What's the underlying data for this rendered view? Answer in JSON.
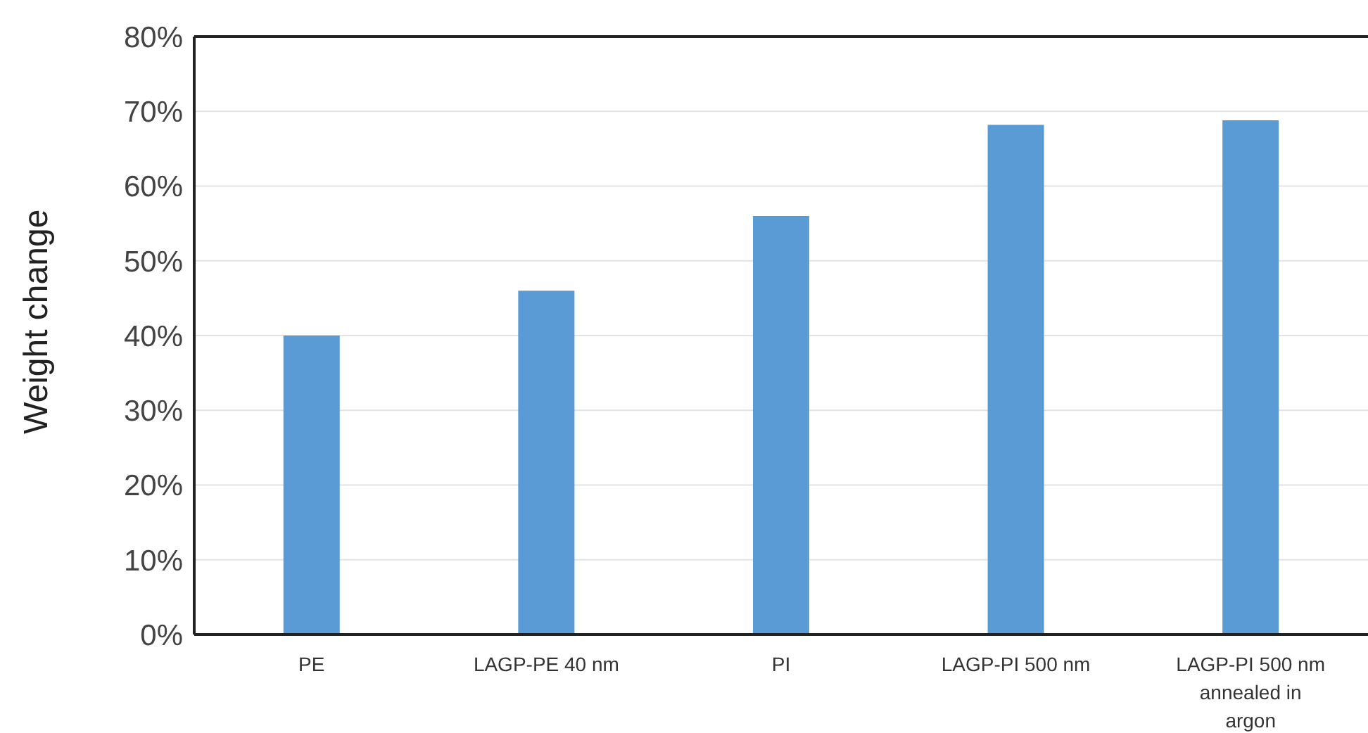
{
  "chart_data": {
    "type": "bar",
    "ylabel": "Weight change",
    "categories": [
      "PE",
      "LAGP-PE 40 nm",
      "PI",
      "LAGP-PI 500 nm",
      "LAGP-PI 500 nm annealed in argon"
    ],
    "values": [
      40,
      46,
      56,
      68.2,
      68.8
    ],
    "color": "#5b9bd5",
    "ylim": [
      0,
      80
    ],
    "yticks": [
      {
        "value": 0,
        "label": "0%"
      },
      {
        "value": 10,
        "label": "10%"
      },
      {
        "value": 20,
        "label": "20%"
      },
      {
        "value": 30,
        "label": "30%"
      },
      {
        "value": 40,
        "label": "40%"
      },
      {
        "value": 50,
        "label": "50%"
      },
      {
        "value": 60,
        "label": "60%"
      },
      {
        "value": 70,
        "label": "70%"
      },
      {
        "value": 80,
        "label": "80%"
      }
    ],
    "grid": "y",
    "legend": false
  }
}
